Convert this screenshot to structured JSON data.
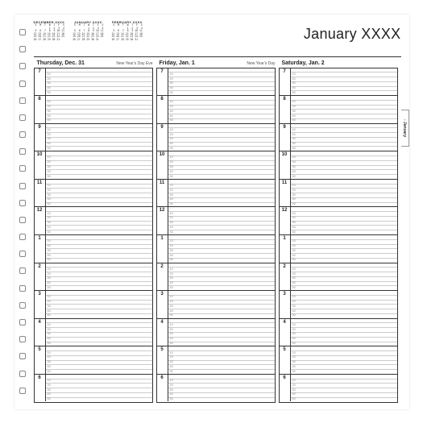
{
  "month_title": "January XXXX",
  "tab_label": "- January",
  "mini_calendars": [
    {
      "title": "DECEMBER XXXX"
    },
    {
      "title": "JANUARY XXXX"
    },
    {
      "title": "FEBRUARY XXXX"
    }
  ],
  "days": [
    {
      "name": "Thursday, Dec. 31",
      "note": "New Year's Day Eve"
    },
    {
      "name": "Friday, Jan. 1",
      "note": "New Year's Day"
    },
    {
      "name": "Saturday, Jan. 2",
      "note": ""
    }
  ],
  "hours": [
    "7",
    "8",
    "9",
    "10",
    "11",
    "12",
    "1",
    "2",
    "3",
    "4",
    "5",
    "6"
  ],
  "minutes": [
    "10",
    "20",
    "30",
    "40",
    "50"
  ],
  "binding_holes": 22,
  "colors": {
    "page_bg": "#ffffff",
    "text": "#222222",
    "rule_dark": "#333333",
    "rule_light": "#cccccc",
    "muted": "#888888"
  }
}
